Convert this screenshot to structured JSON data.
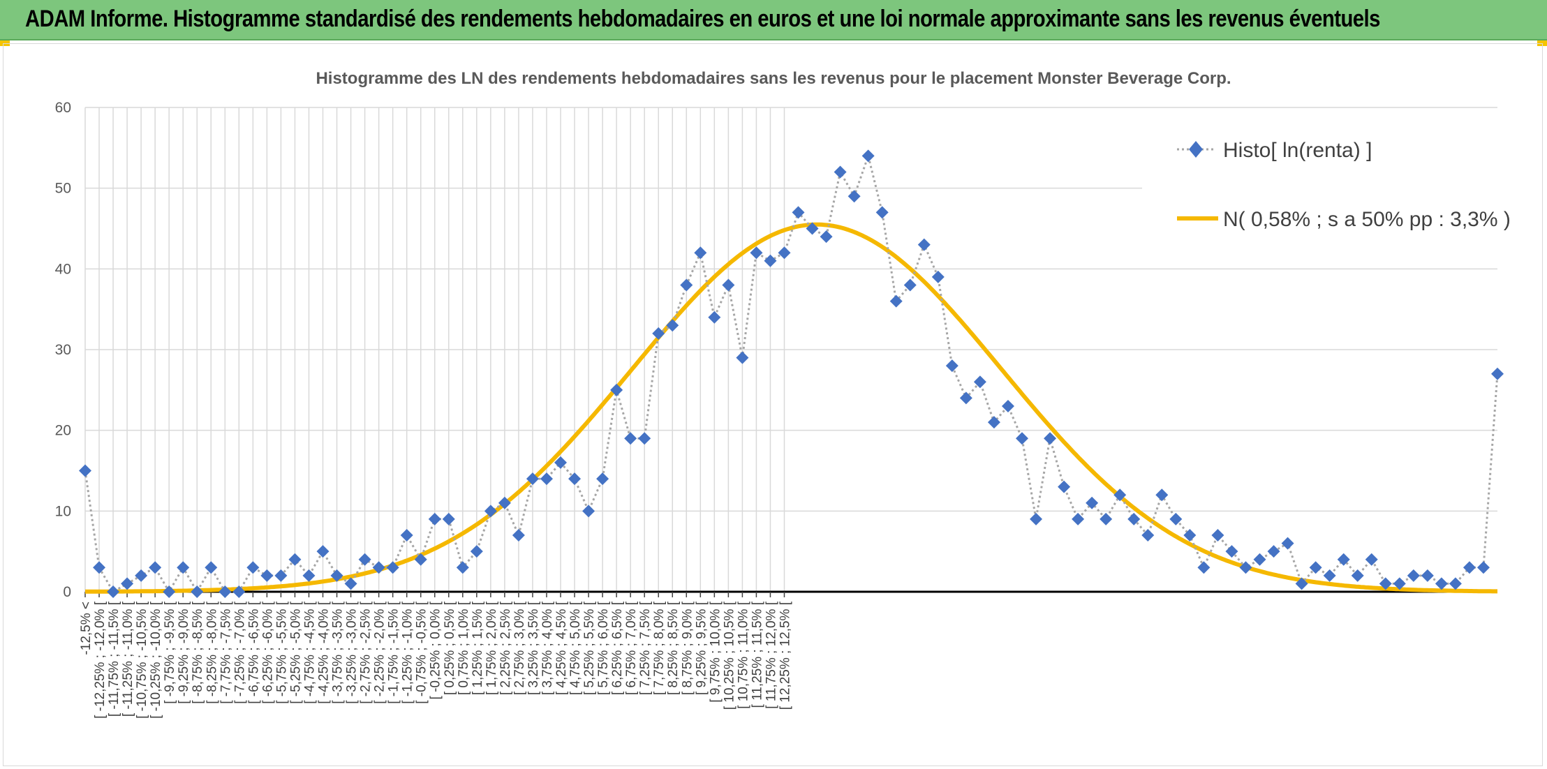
{
  "header": {
    "title": "ADAM Informe. Histogramme standardisé des rendements hebdomadaires en euros et une loi normale approximante sans les revenus éventuels"
  },
  "colors": {
    "banner_bg": "#7dc67d",
    "accent": "#f5c400",
    "series_histo": "#4472c4",
    "series_normal": "#f5b800",
    "connector": "#a6a6a6"
  },
  "chart_data": {
    "type": "line",
    "title": "Histogramme des LN des rendements hebdomadaires sans les revenus pour le placement Monster Beverage Corp.",
    "xlabel": "",
    "ylabel": "",
    "ylim": [
      0,
      60
    ],
    "y_ticks": [
      "0",
      "10",
      "20",
      "30",
      "40",
      "50",
      "60"
    ],
    "grid": true,
    "legend_position": "top-right",
    "categories": [
      "-12,5% <",
      "[ -12,25% ; -12,0% [",
      "[ -11,75% ; -11,5% [",
      "[ -11,25% ; -11,0% [",
      "[ -10,75% ; -10,5% [",
      "[ -10,25% ; -10,0% [",
      "[ -9,75% ; -9,5% [",
      "[ -9,25% ; -9,0% [",
      "[ -8,75% ; -8,5% [",
      "[ -8,25% ; -8,0% [",
      "[ -7,75% ; -7,5% [",
      "[ -7,25% ; -7,0% [",
      "[ -6,75% ; -6,5% [",
      "[ -6,25% ; -6,0% [",
      "[ -5,75% ; -5,5% [",
      "[ -5,25% ; -5,0% [",
      "[ -4,75% ; -4,5% [",
      "[ -4,25% ; -4,0% [",
      "[ -3,75% ; -3,5% [",
      "[ -3,25% ; -3,0% [",
      "[ -2,75% ; -2,5% [",
      "[ -2,25% ; -2,0% [",
      "[ -1,75% ; -1,5% [",
      "[ -1,25% ; -1,0% [",
      "[ -0,75% ; -0,5% [",
      "[ -0,25% ; 0,0% [",
      "[ 0,25% ; 0,5% [",
      "[ 0,75% ; 1,0% [",
      "[ 1,25% ; 1,5% [",
      "[ 1,75% ; 2,0% [",
      "[ 2,25% ; 2,5% [",
      "[ 2,75% ; 3,0% [",
      "[ 3,25% ; 3,5% [",
      "[ 3,75% ; 4,0% [",
      "[ 4,25% ; 4,5% [",
      "[ 4,75% ; 5,0% [",
      "[ 5,25% ; 5,5% [",
      "[ 5,75% ; 6,0% [",
      "[ 6,25% ; 6,5% [",
      "[ 6,75% ; 7,0% [",
      "[ 7,25% ; 7,5% [",
      "[ 7,75% ; 8,0% [",
      "[ 8,25% ; 8,5% [",
      "[ 8,75% ; 9,0% [",
      "[ 9,25% ; 9,5% [",
      "[ 9,75% ; 10,0% [",
      "[ 10,25% ; 10,5% [",
      "[ 10,75% ; 11,0% [",
      "[ 11,25% ; 11,5% [",
      "[ 11,75% ; 12,0% [",
      "[ 12,25% ; 12,5% ["
    ],
    "x": [
      -12.5,
      -12.25,
      -12,
      -11.75,
      -11.5,
      -11.25,
      -11,
      -10.75,
      -10.5,
      -10.25,
      -10,
      -9.75,
      -9.5,
      -9.25,
      -9,
      -8.75,
      -8.5,
      -8.25,
      -8,
      -7.75,
      -7.5,
      -7.25,
      -7,
      -6.75,
      -6.5,
      -6.25,
      -6,
      -5.75,
      -5.5,
      -5.25,
      -5,
      -4.75,
      -4.5,
      -4.25,
      -4,
      -3.75,
      -3.5,
      -3.25,
      -3,
      -2.75,
      -2.5,
      -2.25,
      -2,
      -1.75,
      -1.5,
      -1.25,
      -1,
      -0.75,
      -0.5,
      -0.25,
      0,
      0.25,
      0.5,
      0.75,
      1,
      1.25,
      1.5,
      1.75,
      2,
      2.25,
      2.5,
      2.75,
      3,
      3.25,
      3.5,
      3.75,
      4,
      4.25,
      4.5,
      4.75,
      5,
      5.25,
      5.5,
      5.75,
      6,
      6.25,
      6.5,
      6.75,
      7,
      7.25,
      7.5,
      7.75,
      8,
      8.25,
      8.5,
      8.75,
      9,
      9.25,
      9.5,
      9.75,
      10,
      10.25,
      10.5,
      10.75,
      11,
      11.25,
      11.5,
      11.75,
      12,
      12.25,
      12.5,
      12.75
    ],
    "series": [
      {
        "name": "Histo[ ln(renta) ]",
        "style": "markers-dotted",
        "values": [
          15,
          3,
          0,
          1,
          2,
          3,
          0,
          3,
          0,
          3,
          0,
          0,
          3,
          2,
          2,
          4,
          2,
          5,
          2,
          1,
          4,
          3,
          3,
          7,
          4,
          9,
          9,
          3,
          5,
          10,
          11,
          7,
          14,
          14,
          16,
          14,
          10,
          14,
          25,
          19,
          19,
          32,
          33,
          38,
          42,
          34,
          38,
          29,
          42,
          41,
          42,
          47,
          45,
          44,
          52,
          49,
          54,
          47,
          36,
          38,
          43,
          39,
          28,
          24,
          26,
          21,
          23,
          19,
          9,
          19,
          13,
          9,
          11,
          9,
          12,
          9,
          7,
          12,
          9,
          7,
          3,
          7,
          5,
          3,
          4,
          5,
          6,
          1,
          3,
          2,
          4,
          2,
          4,
          1,
          1,
          2,
          2,
          1,
          1,
          3,
          3,
          27
        ]
      },
      {
        "name": "N( 0,58% ; s a 50% pp : 3,3% )",
        "style": "smooth-line",
        "mean": 0.58,
        "sd": 3.3,
        "peak": 45.5
      }
    ]
  }
}
